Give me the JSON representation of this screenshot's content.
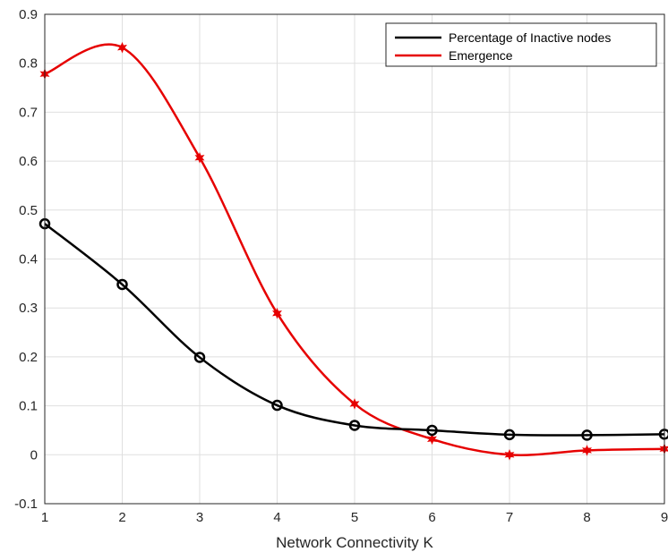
{
  "chart_data": {
    "type": "line",
    "title": "",
    "xlabel": "Network Connectivity K",
    "ylabel": "",
    "xlim": [
      1,
      9
    ],
    "ylim": [
      -0.1,
      0.9
    ],
    "xticks": [
      1,
      2,
      3,
      4,
      5,
      6,
      7,
      8,
      9
    ],
    "yticks": [
      -0.1,
      0,
      0.1,
      0.2,
      0.3,
      0.4,
      0.5,
      0.6,
      0.7,
      0.8,
      0.9
    ],
    "grid": true,
    "legend_position": "top-right",
    "x": [
      1,
      2,
      3,
      4,
      5,
      6,
      7,
      8,
      9
    ],
    "series": [
      {
        "name": "Percentage of Inactive nodes",
        "color": "#000000",
        "marker": "open-circle",
        "values": [
          0.472,
          0.348,
          0.199,
          0.101,
          0.06,
          0.05,
          0.041,
          0.04,
          0.042
        ]
      },
      {
        "name": "Emergence",
        "color": "#e60000",
        "marker": "star",
        "values": [
          0.778,
          0.832,
          0.607,
          0.289,
          0.104,
          0.032,
          0.0,
          0.009,
          0.012
        ]
      }
    ]
  }
}
